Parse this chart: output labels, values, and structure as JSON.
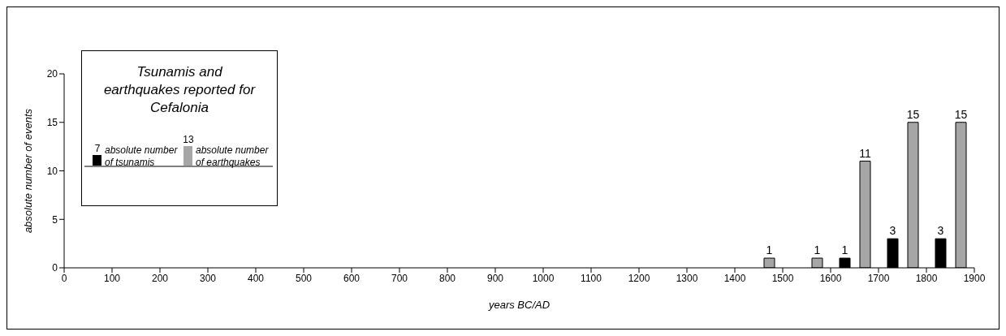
{
  "chart_data": {
    "type": "bar",
    "xlabel": "years BC/AD",
    "ylabel": "absolute number of events",
    "legend_title": "Tsunamis and earthquakes reported for Cefalonia",
    "x": [
      1450,
      1550,
      1650,
      1750,
      1850
    ],
    "series": [
      {
        "name": "absolute number of tsunamis",
        "color": "#000000",
        "values": [
          null,
          null,
          1,
          3,
          3
        ]
      },
      {
        "name": "absolute number of earthquakes",
        "color": "#a6a6a6",
        "values": [
          1,
          1,
          11,
          15,
          15
        ]
      }
    ],
    "annotations": [
      "7",
      "13"
    ],
    "xlim": [
      0,
      1900
    ],
    "xticks": [
      0,
      100,
      200,
      300,
      400,
      500,
      600,
      700,
      800,
      900,
      1000,
      1100,
      1200,
      1300,
      1400,
      1500,
      1600,
      1700,
      1800,
      1900
    ],
    "ylim": [
      0,
      20
    ],
    "yticks": [
      0,
      5,
      10,
      15,
      20
    ],
    "data_labels": true,
    "legend": "top left",
    "grid": false
  }
}
